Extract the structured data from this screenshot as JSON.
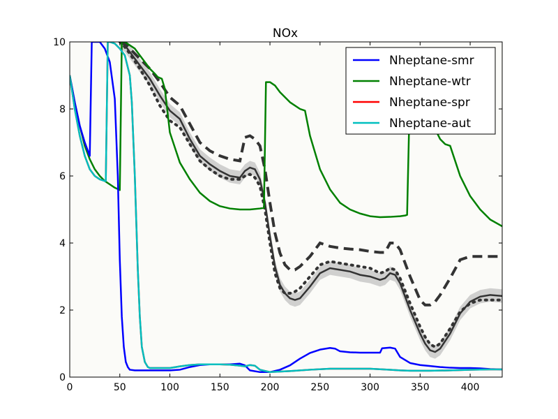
{
  "chart_data": {
    "type": "line",
    "title": "NOx",
    "xlabel": "",
    "ylabel": "",
    "xlim": [
      0,
      432
    ],
    "ylim": [
      0,
      10
    ],
    "x_ticks": [
      0,
      50,
      100,
      150,
      200,
      250,
      300,
      350,
      400
    ],
    "y_ticks": [
      0,
      2,
      4,
      6,
      8,
      10
    ],
    "legend_position": "top-right",
    "grid": false,
    "series": [
      {
        "name": "Nheptane-smr",
        "color": "#0000ff",
        "x": [
          0,
          5,
          10,
          15,
          20,
          22,
          25,
          30,
          35,
          40,
          45,
          48,
          50,
          52,
          54,
          56,
          58,
          60,
          65,
          70,
          80,
          90,
          100,
          110,
          120,
          130,
          140,
          150,
          160,
          165,
          170,
          175,
          180,
          190,
          200,
          210,
          220,
          230,
          240,
          250,
          260,
          265,
          270,
          280,
          290,
          300,
          310,
          312,
          320,
          325,
          330,
          340,
          350,
          360,
          370,
          380,
          390,
          400,
          410,
          420,
          432
        ],
        "values": [
          9.0,
          8.2,
          7.5,
          7.0,
          6.6,
          10.0,
          10.0,
          10.0,
          9.8,
          9.4,
          8.3,
          6.0,
          3.5,
          1.8,
          0.9,
          0.45,
          0.3,
          0.22,
          0.2,
          0.2,
          0.2,
          0.2,
          0.2,
          0.22,
          0.3,
          0.36,
          0.38,
          0.38,
          0.38,
          0.39,
          0.4,
          0.35,
          0.2,
          0.15,
          0.15,
          0.22,
          0.35,
          0.55,
          0.72,
          0.82,
          0.87,
          0.85,
          0.77,
          0.74,
          0.73,
          0.73,
          0.73,
          0.86,
          0.88,
          0.85,
          0.6,
          0.42,
          0.36,
          0.33,
          0.3,
          0.28,
          0.27,
          0.27,
          0.26,
          0.24,
          0.23
        ]
      },
      {
        "name": "Nheptane-wtr",
        "color": "#008000",
        "x": [
          0,
          5,
          10,
          15,
          20,
          25,
          30,
          35,
          40,
          45,
          50,
          52,
          55,
          60,
          65,
          70,
          75,
          80,
          85,
          88,
          92,
          95,
          100,
          110,
          120,
          130,
          140,
          150,
          160,
          170,
          180,
          190,
          194,
          196,
          200,
          205,
          210,
          220,
          230,
          235,
          240,
          250,
          260,
          270,
          280,
          290,
          300,
          310,
          320,
          330,
          335,
          337,
          340,
          345,
          350,
          360,
          370,
          375,
          380,
          390,
          400,
          410,
          420,
          432
        ],
        "values": [
          9.0,
          8.2,
          7.5,
          6.9,
          6.5,
          6.2,
          6.0,
          5.85,
          5.75,
          5.65,
          5.58,
          10.0,
          10.0,
          9.9,
          9.8,
          9.6,
          9.4,
          9.2,
          9.05,
          8.95,
          8.9,
          8.6,
          7.3,
          6.4,
          5.9,
          5.5,
          5.25,
          5.1,
          5.03,
          5.0,
          5.0,
          5.03,
          5.05,
          8.8,
          8.8,
          8.7,
          8.5,
          8.2,
          8.0,
          7.95,
          7.2,
          6.2,
          5.6,
          5.2,
          5.0,
          4.88,
          4.8,
          4.77,
          4.78,
          4.8,
          4.82,
          4.84,
          8.8,
          8.6,
          8.3,
          7.7,
          7.1,
          6.95,
          6.9,
          6.0,
          5.4,
          5.0,
          4.7,
          4.5
        ]
      },
      {
        "name": "Nheptane-spr",
        "color": "#ff0000",
        "x": [
          0,
          5,
          10,
          15,
          20,
          25,
          30,
          35,
          36,
          38,
          40,
          45,
          50,
          55,
          60,
          62,
          65,
          68,
          70,
          72,
          75,
          78,
          80,
          90,
          100,
          110,
          120,
          130,
          140,
          150,
          160,
          170,
          175,
          180,
          185,
          190,
          200,
          220,
          240,
          260,
          280,
          300,
          320,
          330,
          340,
          360,
          380,
          400,
          420,
          432
        ],
        "values": [
          9.0,
          8.0,
          7.2,
          6.6,
          6.2,
          6.0,
          5.9,
          5.85,
          5.85,
          10.0,
          10.0,
          9.95,
          9.8,
          9.6,
          9.0,
          8.2,
          6.0,
          3.2,
          1.8,
          0.9,
          0.45,
          0.3,
          0.27,
          0.27,
          0.27,
          0.32,
          0.36,
          0.38,
          0.38,
          0.38,
          0.37,
          0.34,
          0.32,
          0.36,
          0.34,
          0.22,
          0.15,
          0.18,
          0.22,
          0.25,
          0.25,
          0.25,
          0.22,
          0.2,
          0.19,
          0.19,
          0.2,
          0.22,
          0.23,
          0.23
        ]
      },
      {
        "name": "Nheptane-aut",
        "color": "#00bfbf",
        "x": [
          0,
          5,
          10,
          15,
          20,
          25,
          30,
          35,
          36,
          38,
          40,
          45,
          50,
          55,
          60,
          62,
          65,
          68,
          70,
          72,
          75,
          78,
          80,
          90,
          100,
          110,
          120,
          130,
          140,
          150,
          160,
          170,
          175,
          180,
          185,
          190,
          200,
          220,
          240,
          260,
          280,
          300,
          320,
          330,
          340,
          360,
          380,
          400,
          420,
          432
        ],
        "values": [
          9.0,
          8.0,
          7.2,
          6.6,
          6.2,
          6.0,
          5.9,
          5.85,
          5.85,
          10.0,
          10.0,
          9.95,
          9.8,
          9.6,
          9.0,
          8.2,
          6.0,
          3.2,
          1.8,
          0.9,
          0.45,
          0.3,
          0.27,
          0.27,
          0.27,
          0.32,
          0.36,
          0.38,
          0.38,
          0.38,
          0.37,
          0.34,
          0.32,
          0.36,
          0.34,
          0.22,
          0.15,
          0.18,
          0.22,
          0.25,
          0.25,
          0.25,
          0.22,
          0.2,
          0.19,
          0.19,
          0.2,
          0.22,
          0.23,
          0.23
        ]
      }
    ],
    "background_overlay": {
      "band_color": "#c8c8c8",
      "line_color": "#333333",
      "x": [
        50,
        55,
        60,
        70,
        80,
        90,
        100,
        110,
        120,
        130,
        140,
        150,
        160,
        170,
        175,
        180,
        185,
        190,
        195,
        200,
        205,
        210,
        215,
        220,
        225,
        230,
        240,
        250,
        260,
        270,
        280,
        290,
        300,
        310,
        315,
        320,
        325,
        330,
        340,
        350,
        355,
        360,
        365,
        370,
        380,
        390,
        400,
        410,
        420,
        432
      ],
      "mean": [
        10.0,
        9.9,
        9.7,
        9.3,
        8.9,
        8.4,
        7.95,
        7.7,
        7.1,
        6.6,
        6.35,
        6.15,
        6.0,
        5.95,
        6.15,
        6.25,
        6.2,
        5.9,
        5.2,
        4.2,
        3.3,
        2.75,
        2.5,
        2.35,
        2.3,
        2.35,
        2.7,
        3.1,
        3.25,
        3.2,
        3.15,
        3.05,
        3.0,
        2.9,
        2.95,
        3.1,
        3.05,
        2.8,
        2.0,
        1.3,
        1.0,
        0.8,
        0.75,
        0.85,
        1.3,
        1.9,
        2.25,
        2.4,
        2.45,
        2.42
      ],
      "dashed": [
        10.0,
        9.95,
        9.8,
        9.5,
        9.2,
        8.8,
        8.35,
        8.1,
        7.55,
        7.0,
        6.75,
        6.6,
        6.5,
        6.45,
        7.15,
        7.2,
        7.1,
        6.9,
        6.2,
        5.2,
        4.3,
        3.7,
        3.35,
        3.2,
        3.2,
        3.3,
        3.6,
        4.0,
        3.9,
        3.85,
        3.82,
        3.8,
        3.75,
        3.72,
        3.72,
        4.0,
        4.0,
        3.8,
        3.0,
        2.3,
        2.15,
        2.15,
        2.25,
        2.45,
        2.95,
        3.5,
        3.6,
        3.6,
        3.6,
        3.6
      ],
      "dotted": [
        10.0,
        9.85,
        9.65,
        9.2,
        8.7,
        8.1,
        7.65,
        7.45,
        6.95,
        6.45,
        6.2,
        6.0,
        5.9,
        5.9,
        6.0,
        6.05,
        5.95,
        5.7,
        5.0,
        4.0,
        3.1,
        2.65,
        2.5,
        2.5,
        2.55,
        2.65,
        3.0,
        3.35,
        3.45,
        3.4,
        3.35,
        3.3,
        3.25,
        3.1,
        3.15,
        3.25,
        3.2,
        2.95,
        2.2,
        1.5,
        1.2,
        0.98,
        0.9,
        1.0,
        1.45,
        1.95,
        2.2,
        2.3,
        2.3,
        2.3
      ],
      "band_halfwidth": 0.2
    }
  }
}
